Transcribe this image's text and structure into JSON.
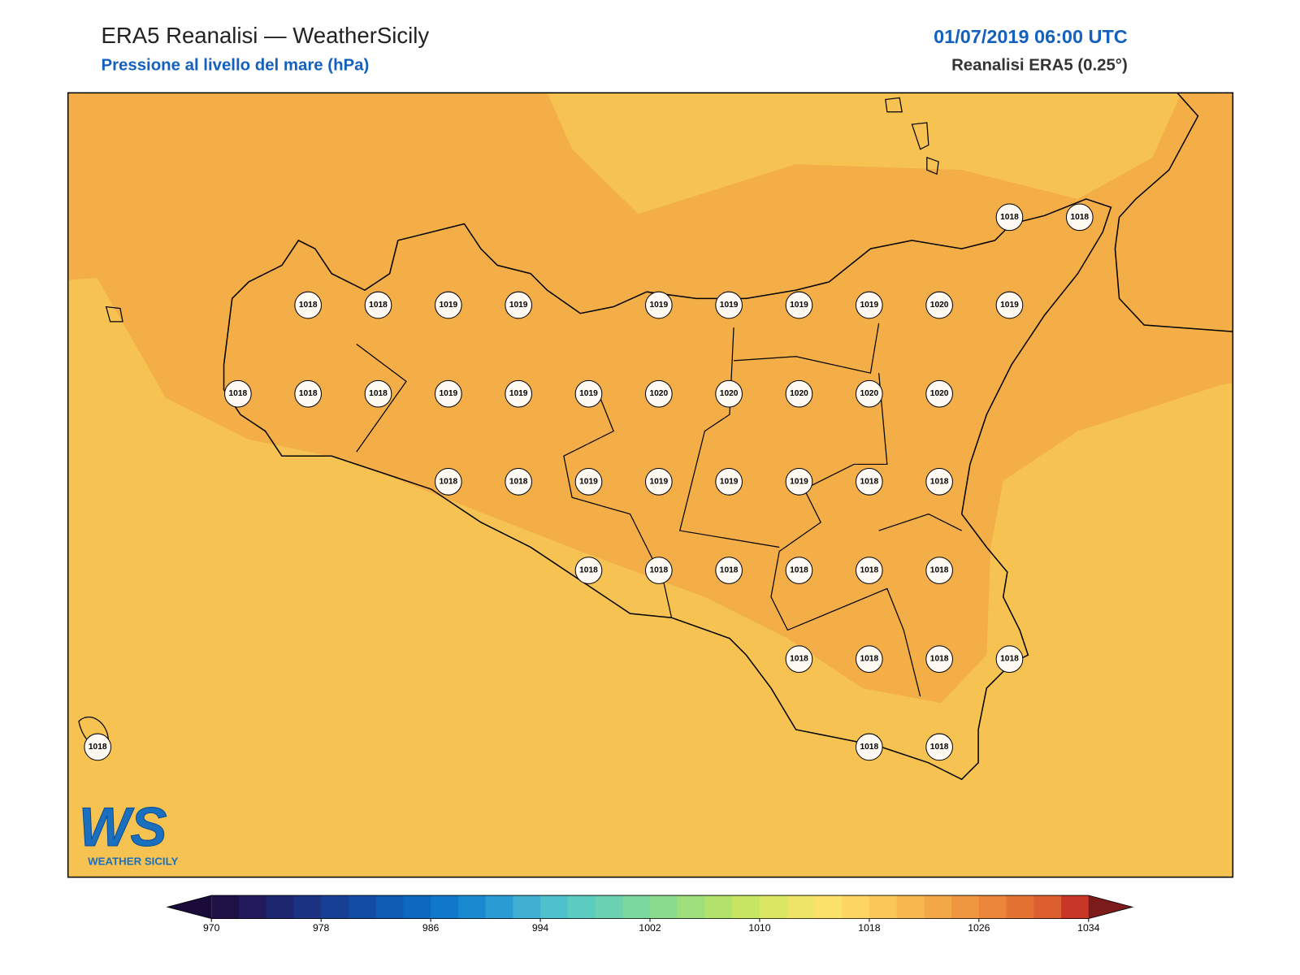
{
  "header": {
    "title": "ERA5 Reanalisi — WeatherSicily",
    "subtitle": "Pressione al livello del mare (hPa)",
    "date": "01/07/2019 06:00 UTC",
    "source": "Reanalisi ERA5 (0.25°)"
  },
  "stations": [
    [
      1018,
      1018
    ],
    [
      1018,
      1018,
      1019,
      1019,
      1019,
      1019,
      1019,
      1019,
      1020,
      1019
    ],
    [
      1018,
      1018,
      1018,
      1019,
      1019,
      1019,
      1020,
      1020,
      1020,
      1020,
      1020
    ],
    [
      1018,
      1018,
      1019,
      1019,
      1019,
      1019,
      1018,
      1018
    ],
    [
      1018,
      1018,
      1018,
      1018,
      1018,
      1018
    ],
    [
      1018,
      1018,
      1018,
      1018
    ],
    [
      1018,
      1018,
      1018
    ]
  ],
  "colorbar": {
    "range": [
      970,
      1034
    ],
    "ticks": [
      970,
      978,
      986,
      994,
      1002,
      1010,
      1018,
      1026,
      1034
    ],
    "colors": [
      "#1f1046",
      "#231a5c",
      "#1f2670",
      "#1c3283",
      "#173f94",
      "#134ca4",
      "#0f5ab3",
      "#0d68c0",
      "#0f78c9",
      "#1a8ad0",
      "#2b9bd3",
      "#3fb0d2",
      "#4fc1cc",
      "#5ccbc0",
      "#6ad2b0",
      "#7ad79e",
      "#8bdb8c",
      "#9edf7c",
      "#b3e26c",
      "#c7e563",
      "#dbe762",
      "#eee566",
      "#fbe06a",
      "#fdd562",
      "#fbc758",
      "#f7b84f",
      "#f3a847",
      "#ef9740",
      "#ea8539",
      "#e47233",
      "#dd5e2e",
      "#c83628"
    ],
    "under": "#1a0b3a",
    "over": "#7c1c1a"
  },
  "logo": {
    "mark": "WS",
    "name": "WEATHER SICILY"
  }
}
